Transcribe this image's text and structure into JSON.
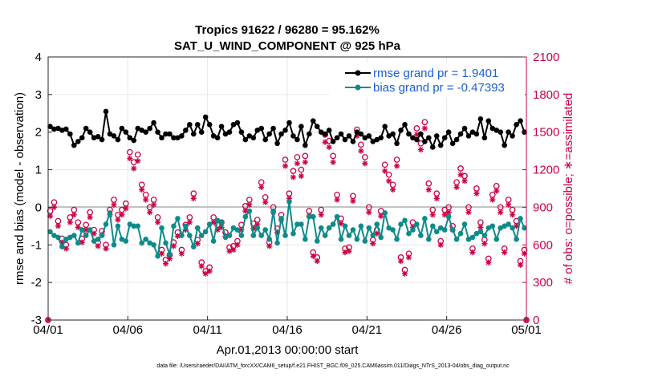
{
  "chart_data": {
    "type": "line",
    "title": "Tropics 91622 / 96280 = 95.162%",
    "subtitle": "SAT_U_WIND_COMPONENT @ 925 hPa",
    "xlabel": "Apr.01,2013 00:00:00 start",
    "ylabel": "rmse and bias (model - observation)",
    "ylabel_right": "# of obs: o=possible; ∗=assimilated",
    "xlim": [
      0,
      30
    ],
    "ylim": [
      -3,
      4
    ],
    "ylim_right": [
      0,
      2100
    ],
    "x_ticks": [
      0,
      5,
      10,
      15,
      20,
      25,
      30
    ],
    "x_tick_labels": [
      "04/01",
      "04/06",
      "04/11",
      "04/16",
      "04/21",
      "04/26",
      "05/01"
    ],
    "y_ticks": [
      -3,
      -2,
      -1,
      0,
      1,
      2,
      3,
      4
    ],
    "y_tick_labels": [
      "-3",
      "-2",
      "-1",
      "0",
      "1",
      "2",
      "3",
      "4"
    ],
    "y_right_ticks": [
      0,
      300,
      600,
      900,
      1200,
      1500,
      1800,
      2100
    ],
    "y_right_tick_labels": [
      "0",
      "300",
      "600",
      "900",
      "1200",
      "1500",
      "1800",
      "2100"
    ],
    "legend_position": "top-right",
    "footer": "data file: /Users/raeder/DAI/ATM_forcXX/CAM6_setup/f.e21.FHIST_BGC.f09_025.CAM6assim.011/Diags_NTrS_2013-04/obs_diag_output.nc",
    "series": [
      {
        "name": "rmse grand pr = 1.9401",
        "axis": "left",
        "color": "#000000",
        "marker": "filled-circle",
        "x": [
          0.125,
          0.375,
          0.625,
          0.875,
          1.125,
          1.375,
          1.625,
          1.875,
          2.125,
          2.375,
          2.625,
          2.875,
          3.125,
          3.375,
          3.625,
          3.875,
          4.125,
          4.375,
          4.625,
          4.875,
          5.125,
          5.375,
          5.625,
          5.875,
          6.125,
          6.375,
          6.625,
          6.875,
          7.125,
          7.375,
          7.625,
          7.875,
          8.125,
          8.375,
          8.625,
          8.875,
          9.125,
          9.375,
          9.625,
          9.875,
          10.125,
          10.375,
          10.625,
          10.875,
          11.125,
          11.375,
          11.625,
          11.875,
          12.125,
          12.375,
          12.625,
          12.875,
          13.125,
          13.375,
          13.625,
          13.875,
          14.125,
          14.375,
          14.625,
          14.875,
          15.125,
          15.375,
          15.625,
          15.875,
          16.125,
          16.375,
          16.625,
          16.875,
          17.125,
          17.375,
          17.625,
          17.875,
          18.125,
          18.375,
          18.625,
          18.875,
          19.125,
          19.375,
          19.625,
          19.875,
          20.125,
          20.375,
          20.625,
          20.875,
          21.125,
          21.375,
          21.625,
          21.875,
          22.125,
          22.375,
          22.625,
          22.875,
          23.125,
          23.375,
          23.625,
          23.875,
          24.125,
          24.375,
          24.625,
          24.875,
          25.125,
          25.375,
          25.625,
          25.875,
          26.125,
          26.375,
          26.625,
          26.875,
          27.125,
          27.375,
          27.625,
          27.875,
          28.125,
          28.375,
          28.625,
          28.875,
          29.125,
          29.375,
          29.625,
          29.875
        ],
        "values": [
          2.15,
          2.08,
          2.1,
          2.05,
          2.08,
          1.95,
          1.65,
          1.75,
          1.85,
          2.1,
          2.0,
          1.85,
          1.88,
          1.8,
          2.55,
          1.95,
          1.9,
          1.8,
          2.1,
          2.0,
          1.85,
          1.78,
          2.1,
          2.05,
          2.0,
          2.1,
          2.25,
          2.0,
          1.85,
          1.95,
          1.95,
          1.85,
          1.85,
          1.9,
          2.05,
          2.2,
          1.95,
          2.2,
          2.0,
          2.4,
          2.2,
          1.9,
          1.85,
          2.15,
          1.95,
          2.0,
          2.2,
          2.25,
          2.0,
          1.8,
          1.9,
          1.85,
          2.05,
          2.1,
          1.8,
          1.95,
          2.1,
          1.7,
          1.95,
          2.05,
          2.25,
          1.9,
          1.8,
          2.15,
          1.65,
          1.95,
          2.3,
          2.15,
          2.0,
          1.95,
          2.05,
          1.75,
          1.85,
          1.95,
          1.8,
          1.9,
          1.75,
          2.0,
          1.95,
          1.85,
          1.9,
          1.75,
          1.8,
          1.85,
          2.15,
          1.9,
          1.95,
          1.7,
          2.05,
          2.2,
          1.95,
          1.85,
          1.8,
          1.95,
          1.75,
          1.85,
          1.6,
          1.9,
          1.65,
          1.85,
          2.0,
          1.7,
          1.8,
          1.95,
          2.1,
          1.9,
          2.0,
          1.95,
          2.35,
          1.85,
          2.3,
          2.1,
          2.05,
          2.0,
          1.65,
          2.0,
          1.9,
          2.2,
          2.3,
          2.0
        ]
      },
      {
        "name": "bias grand pr = -0.47393",
        "axis": "left",
        "color": "#0f8a8a",
        "marker": "filled-circle",
        "x": [
          0.125,
          0.375,
          0.625,
          0.875,
          1.125,
          1.375,
          1.625,
          1.875,
          2.125,
          2.375,
          2.625,
          2.875,
          3.125,
          3.375,
          3.625,
          3.875,
          4.125,
          4.375,
          4.625,
          4.875,
          5.125,
          5.375,
          5.625,
          5.875,
          6.125,
          6.375,
          6.625,
          6.875,
          7.125,
          7.375,
          7.625,
          7.875,
          8.125,
          8.375,
          8.625,
          8.875,
          9.125,
          9.375,
          9.625,
          9.875,
          10.125,
          10.375,
          10.625,
          10.875,
          11.125,
          11.375,
          11.625,
          11.875,
          12.125,
          12.375,
          12.625,
          12.875,
          13.125,
          13.375,
          13.625,
          13.875,
          14.125,
          14.375,
          14.625,
          14.875,
          15.125,
          15.375,
          15.625,
          15.875,
          16.125,
          16.375,
          16.625,
          16.875,
          17.125,
          17.375,
          17.625,
          17.875,
          18.125,
          18.375,
          18.625,
          18.875,
          19.125,
          19.375,
          19.625,
          19.875,
          20.125,
          20.375,
          20.625,
          20.875,
          21.125,
          21.375,
          21.625,
          21.875,
          22.125,
          22.375,
          22.625,
          22.875,
          23.125,
          23.375,
          23.625,
          23.875,
          24.125,
          24.375,
          24.625,
          24.875,
          25.125,
          25.375,
          25.625,
          25.875,
          26.125,
          26.375,
          26.625,
          26.875,
          27.125,
          27.375,
          27.625,
          27.875,
          28.125,
          28.375,
          28.625,
          28.875,
          29.125,
          29.375,
          29.625,
          29.875
        ],
        "values": [
          -0.65,
          -0.75,
          -0.8,
          -1.05,
          -0.85,
          -0.8,
          -0.75,
          -0.95,
          -0.6,
          -0.75,
          -0.6,
          -0.9,
          -0.85,
          -0.75,
          -0.45,
          -0.15,
          -1.0,
          -0.5,
          -0.85,
          -0.9,
          -0.45,
          -0.5,
          -0.5,
          -0.95,
          -0.85,
          -0.95,
          -1.0,
          -1.3,
          -0.55,
          -0.95,
          -1.25,
          -0.5,
          -0.3,
          -0.75,
          -0.5,
          -0.75,
          -1.05,
          -0.55,
          -0.75,
          -0.65,
          -0.45,
          -0.9,
          -0.35,
          -0.4,
          -0.8,
          -0.75,
          -0.55,
          -0.6,
          -0.75,
          -0.25,
          -0.1,
          -0.75,
          -0.55,
          -0.75,
          -0.6,
          -0.85,
          -0.1,
          -0.95,
          -0.3,
          -0.75,
          0.15,
          -0.7,
          -0.45,
          -0.45,
          -0.85,
          -0.25,
          -0.25,
          -0.9,
          -0.55,
          -0.75,
          -0.55,
          -0.45,
          -0.25,
          -0.85,
          -0.5,
          -0.75,
          -0.6,
          -0.85,
          -0.5,
          -0.9,
          -0.55,
          -0.75,
          -0.45,
          -0.8,
          -0.15,
          -0.55,
          -0.6,
          -0.85,
          -0.45,
          -0.35,
          -0.7,
          -0.6,
          -0.45,
          -0.75,
          -0.3,
          -0.85,
          -0.5,
          -0.65,
          -0.55,
          -0.6,
          -0.25,
          -0.6,
          -0.85,
          -0.7,
          -0.45,
          -0.85,
          -0.8,
          -0.7,
          -0.65,
          -0.75,
          -0.55,
          -0.5,
          -0.85,
          -0.55,
          -0.5,
          -0.45,
          -0.55,
          -0.85,
          -0.3,
          -0.55
        ]
      },
      {
        "name": "possible",
        "axis": "right",
        "color": "#cc0044",
        "marker": "open-circle",
        "x": [
          0,
          0.125,
          0.375,
          0.625,
          0.875,
          1.125,
          1.375,
          1.625,
          1.875,
          2.125,
          2.375,
          2.625,
          2.875,
          3.125,
          3.375,
          3.625,
          3.875,
          4.125,
          4.375,
          4.625,
          4.875,
          5.125,
          5.375,
          5.625,
          5.875,
          6.125,
          6.375,
          6.625,
          6.875,
          7.125,
          7.375,
          7.625,
          7.875,
          8.125,
          8.375,
          8.625,
          8.875,
          9.125,
          9.375,
          9.625,
          9.875,
          10.125,
          10.375,
          10.625,
          10.875,
          11.125,
          11.375,
          11.625,
          11.875,
          12.125,
          12.375,
          12.625,
          12.875,
          13.125,
          13.375,
          13.625,
          13.875,
          14.125,
          14.375,
          14.625,
          14.875,
          15.125,
          15.375,
          15.625,
          15.875,
          16.125,
          16.375,
          16.625,
          16.875,
          17.125,
          17.375,
          17.625,
          17.875,
          18.125,
          18.375,
          18.625,
          18.875,
          19.125,
          19.375,
          19.625,
          19.875,
          20.125,
          20.375,
          20.625,
          20.875,
          21.125,
          21.375,
          21.625,
          21.875,
          22.125,
          22.375,
          22.625,
          22.875,
          23.125,
          23.375,
          23.625,
          23.875,
          24.125,
          24.375,
          24.625,
          24.875,
          25.125,
          25.375,
          25.625,
          25.875,
          26.125,
          26.375,
          26.625,
          26.875,
          27.125,
          27.375,
          27.625,
          27.875,
          28.125,
          28.375,
          28.625,
          28.875,
          29.125,
          29.375,
          29.625,
          29.875,
          30
        ],
        "values": [
          0,
          870,
          940,
          790,
          650,
          600,
          820,
          880,
          780,
          650,
          760,
          860,
          720,
          620,
          710,
          600,
          880,
          960,
          840,
          880,
          930,
          1340,
          1260,
          1320,
          1080,
          1000,
          900,
          960,
          820,
          560,
          480,
          520,
          620,
          700,
          560,
          760,
          820,
          1010,
          640,
          460,
          390,
          420,
          820,
          760,
          780,
          700,
          580,
          590,
          630,
          760,
          910,
          960,
          770,
          800,
          1100,
          980,
          620,
          900,
          730,
          840,
          1280,
          1010,
          1190,
          1300,
          1200,
          1310,
          870,
          540,
          500,
          880,
          1480,
          1430,
          1310,
          1000,
          810,
          570,
          580,
          990,
          1520,
          1400,
          1300,
          900,
          640,
          720,
          870,
          1240,
          1160,
          1080,
          1280,
          500,
          400,
          530,
          780,
          1530,
          1410,
          1580,
          1090,
          880,
          1010,
          630,
          880,
          900,
          750,
          1100,
          1210,
          1150,
          900,
          570,
          1050,
          780,
          640,
          490,
          1000,
          1070,
          900,
          570,
          960,
          880,
          790,
          470,
          560,
          0
        ]
      },
      {
        "name": "assimilated",
        "axis": "right",
        "color": "#cc0044",
        "marker": "asterisk",
        "x": [
          0,
          0.125,
          0.375,
          0.625,
          0.875,
          1.125,
          1.375,
          1.625,
          1.875,
          2.125,
          2.375,
          2.625,
          2.875,
          3.125,
          3.375,
          3.625,
          3.875,
          4.125,
          4.375,
          4.625,
          4.875,
          5.125,
          5.375,
          5.625,
          5.875,
          6.125,
          6.375,
          6.625,
          6.875,
          7.125,
          7.375,
          7.625,
          7.875,
          8.125,
          8.375,
          8.625,
          8.875,
          9.125,
          9.375,
          9.625,
          9.875,
          10.125,
          10.375,
          10.625,
          10.875,
          11.125,
          11.375,
          11.625,
          11.875,
          12.125,
          12.375,
          12.625,
          12.875,
          13.125,
          13.375,
          13.625,
          13.875,
          14.125,
          14.375,
          14.625,
          14.875,
          15.125,
          15.375,
          15.625,
          15.875,
          16.125,
          16.375,
          16.625,
          16.875,
          17.125,
          17.375,
          17.625,
          17.875,
          18.125,
          18.375,
          18.625,
          18.875,
          19.125,
          19.375,
          19.625,
          19.875,
          20.125,
          20.375,
          20.625,
          20.875,
          21.125,
          21.375,
          21.625,
          21.875,
          22.125,
          22.375,
          22.625,
          22.875,
          23.125,
          23.375,
          23.625,
          23.875,
          24.125,
          24.375,
          24.625,
          24.875,
          25.125,
          25.375,
          25.625,
          25.875,
          26.125,
          26.375,
          26.625,
          26.875,
          27.125,
          27.375,
          27.625,
          27.875,
          28.125,
          28.375,
          28.625,
          28.875,
          29.125,
          29.375,
          29.625,
          29.875,
          30
        ],
        "values": [
          0,
          830,
          900,
          750,
          620,
          570,
          780,
          840,
          740,
          620,
          720,
          820,
          690,
          590,
          680,
          570,
          840,
          920,
          800,
          840,
          890,
          1290,
          1210,
          1270,
          1040,
          960,
          860,
          920,
          780,
          530,
          450,
          490,
          590,
          670,
          530,
          720,
          780,
          970,
          610,
          430,
          370,
          390,
          780,
          720,
          740,
          670,
          550,
          560,
          600,
          720,
          870,
          920,
          730,
          760,
          1060,
          940,
          590,
          860,
          700,
          800,
          1230,
          970,
          1140,
          1250,
          1150,
          1260,
          830,
          510,
          470,
          840,
          1420,
          1380,
          1260,
          960,
          770,
          540,
          550,
          950,
          1470,
          1350,
          1250,
          860,
          610,
          690,
          830,
          1190,
          1110,
          1040,
          1230,
          470,
          370,
          500,
          740,
          1480,
          1360,
          1530,
          1040,
          840,
          970,
          600,
          840,
          860,
          720,
          1060,
          1160,
          1110,
          860,
          540,
          1010,
          740,
          610,
          460,
          960,
          1030,
          860,
          540,
          920,
          840,
          750,
          440,
          530,
          0
        ]
      }
    ]
  }
}
